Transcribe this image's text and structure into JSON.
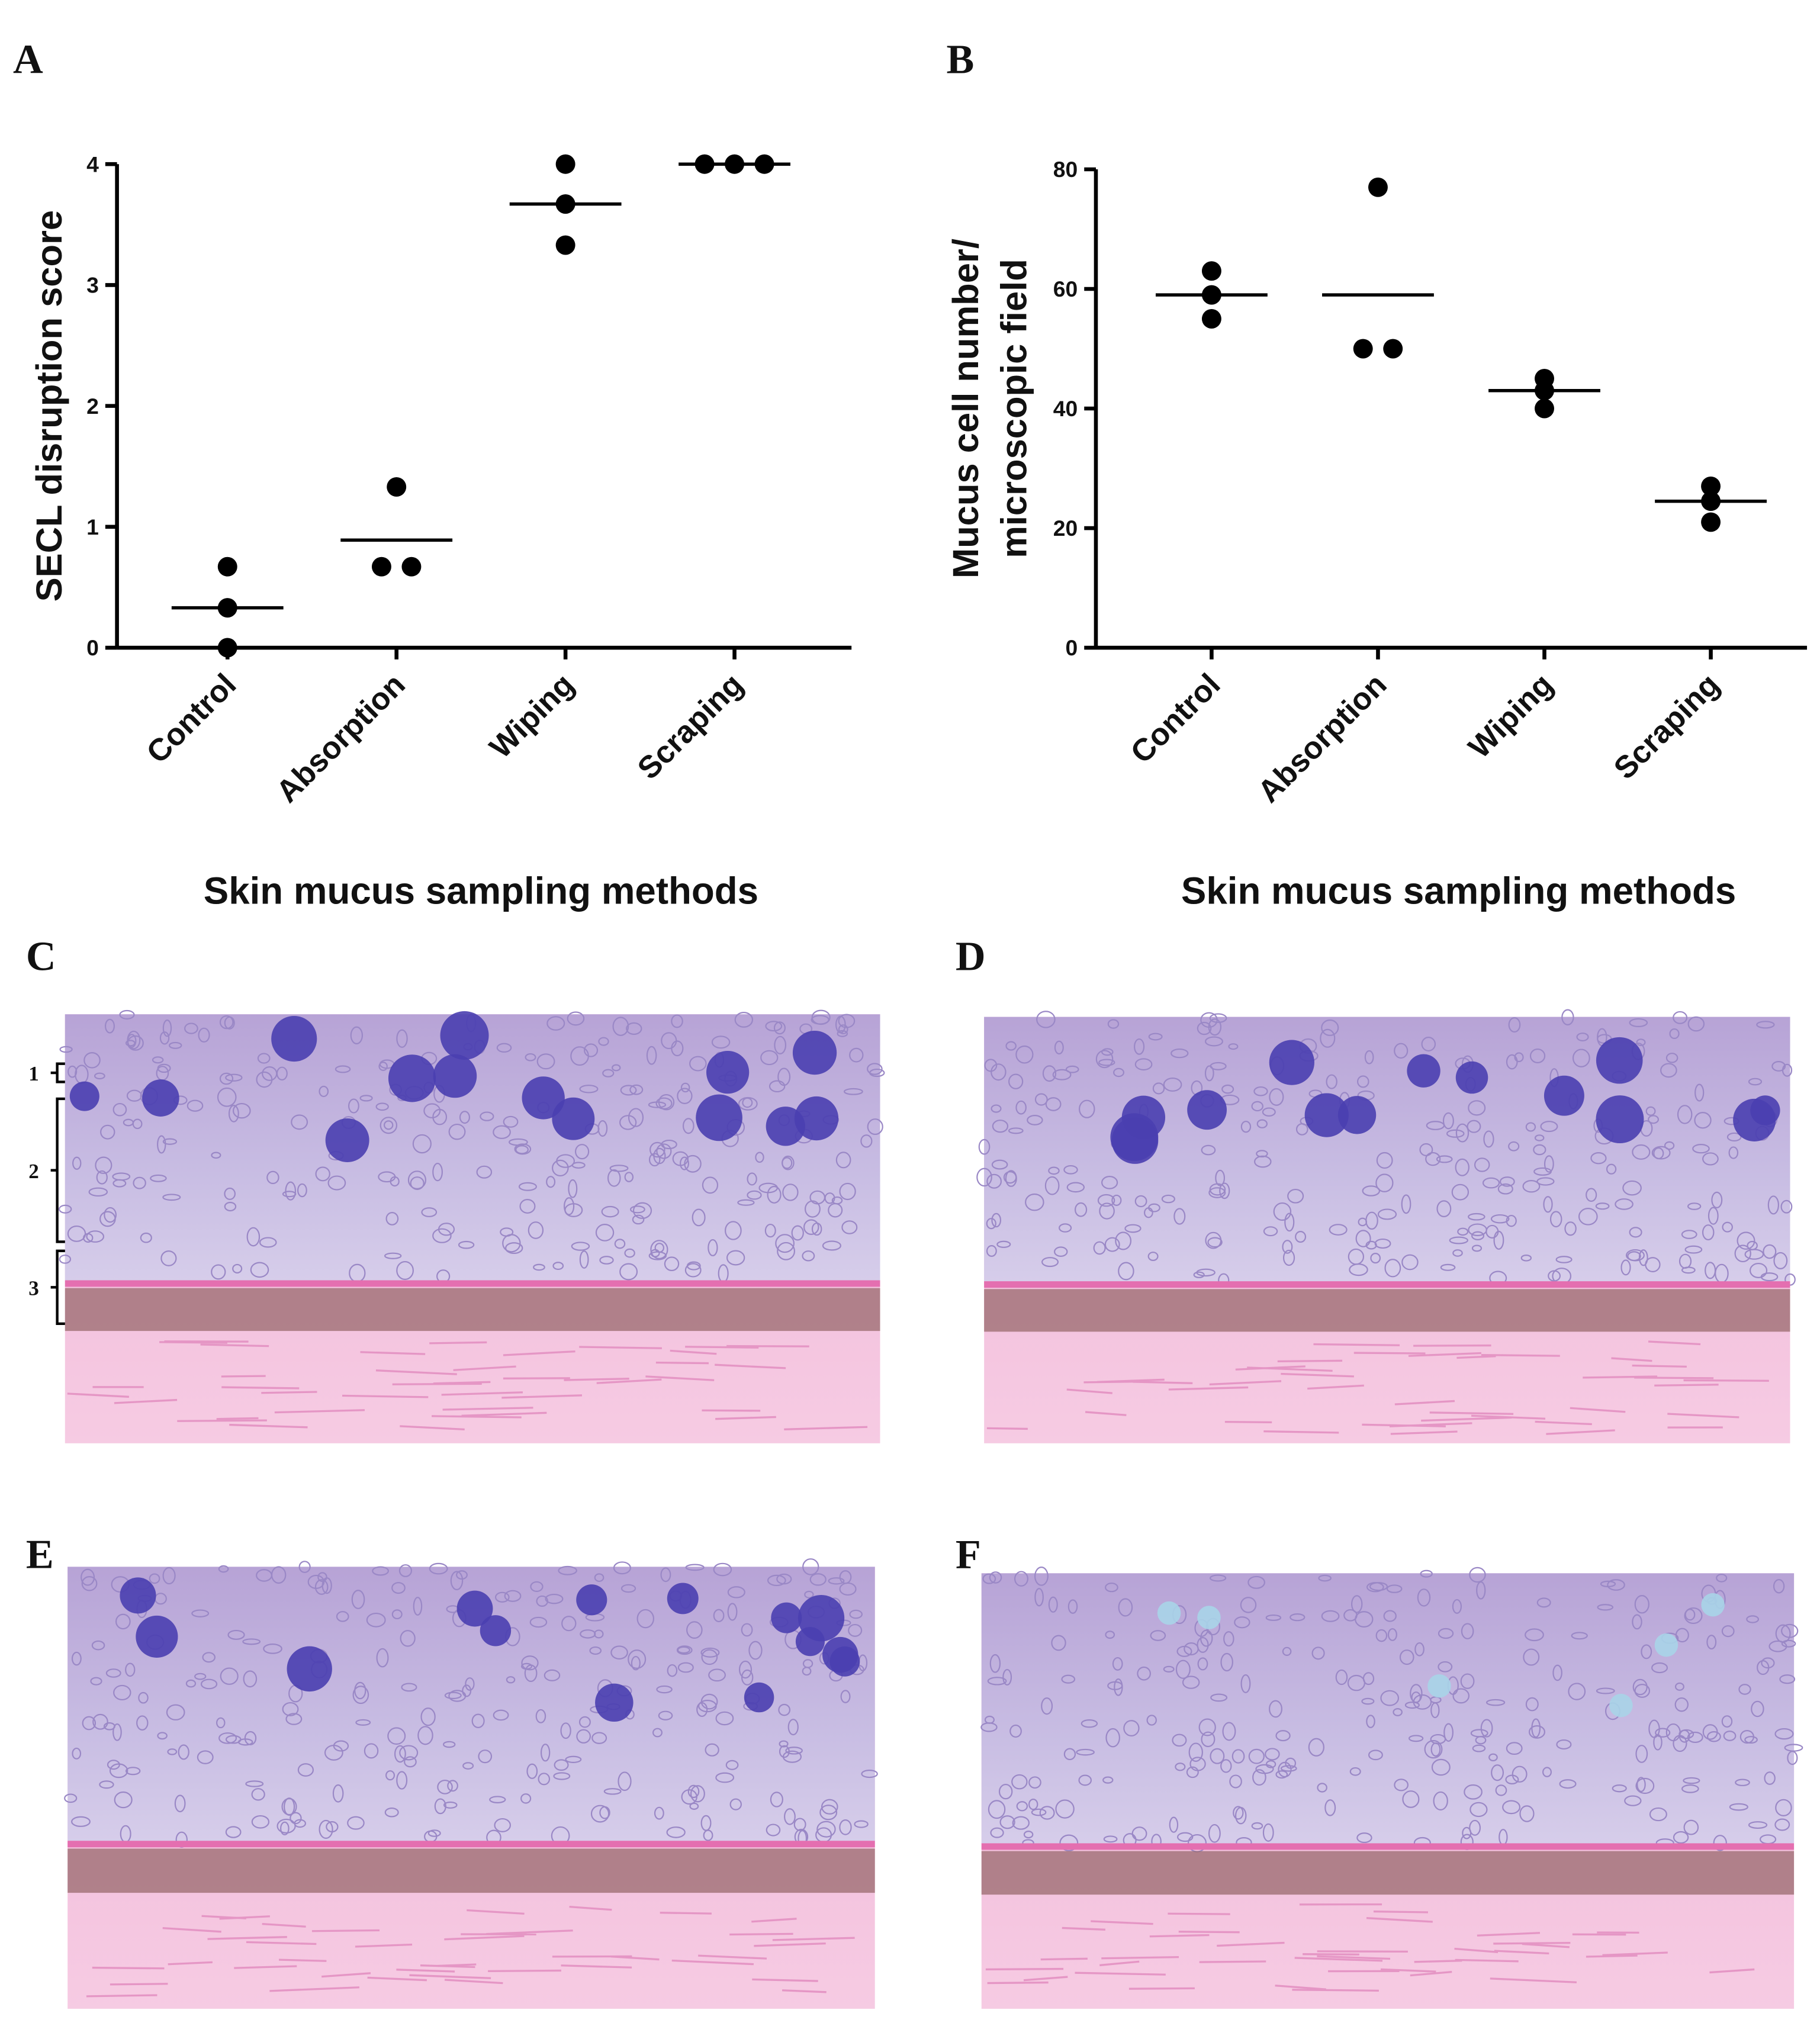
{
  "chart_data": [
    {
      "type": "dot",
      "panel": "A",
      "ylabel": [
        "SECL disruption score"
      ],
      "xlabel": "Skin mucus sampling methods",
      "categories": [
        "Control",
        "Absorption",
        "Wiping",
        "Scraping"
      ],
      "points": [
        [
          0,
          0.33,
          0.67
        ],
        [
          0.67,
          0.67,
          1.33
        ],
        [
          3.33,
          3.67,
          4
        ],
        [
          4,
          4,
          4
        ]
      ],
      "means": [
        0.33,
        0.89,
        3.67,
        4
      ],
      "ylim": [
        0,
        4
      ],
      "yticks": [
        0,
        1,
        2,
        3,
        4
      ],
      "color": "#000000"
    },
    {
      "type": "dot",
      "panel": "B",
      "ylabel": [
        "Mucus cell number/",
        "microscopic field"
      ],
      "xlabel": "Skin mucus sampling methods",
      "categories": [
        "Control",
        "Absorption",
        "Wiping",
        "Scraping"
      ],
      "points": [
        [
          55,
          59,
          63
        ],
        [
          50,
          50,
          77
        ],
        [
          40,
          43,
          45
        ],
        [
          21,
          24.5,
          27
        ]
      ],
      "means": [
        59,
        59,
        43,
        24.5
      ],
      "ylim": [
        0,
        80
      ],
      "yticks": [
        0,
        20,
        40,
        60,
        80
      ],
      "color": "#000000"
    }
  ],
  "images": [
    {
      "label": "C",
      "layer_labels": [
        "1",
        "2",
        "3"
      ]
    },
    {
      "label": "D"
    },
    {
      "label": "E"
    },
    {
      "label": "F"
    }
  ]
}
